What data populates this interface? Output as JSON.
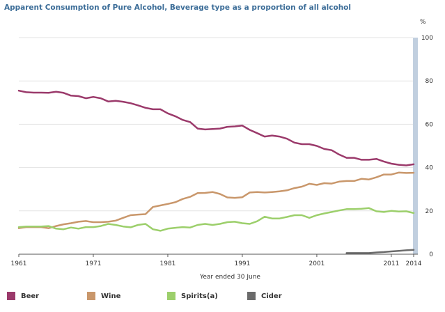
{
  "chart_data": {
    "type": "line",
    "title": "Apparent Consumption of Pure Alcohol, Beverage type as a proportion of all alcohol",
    "xlabel": "Year ended 30 June",
    "ylabel": "%",
    "xlim": [
      1961,
      2014
    ],
    "ylim": [
      0,
      100
    ],
    "x_ticks": [
      "1961",
      "1971",
      "1981",
      "1991",
      "2001",
      "2011",
      "2014"
    ],
    "y_ticks": [
      "0",
      "20",
      "40",
      "60",
      "80",
      "100"
    ],
    "legend_position": "bottom",
    "series": [
      {
        "name": "Beer",
        "color": "#9b3a6b",
        "x": [
          1961,
          1962,
          1963,
          1964,
          1965,
          1966,
          1967,
          1968,
          1969,
          1970,
          1971,
          1972,
          1973,
          1974,
          1975,
          1976,
          1977,
          1978,
          1979,
          1980,
          1981,
          1982,
          1983,
          1984,
          1985,
          1986,
          1987,
          1988,
          1989,
          1990,
          1991,
          1992,
          1993,
          1994,
          1995,
          1996,
          1997,
          1998,
          1999,
          2000,
          2001,
          2002,
          2003,
          2004,
          2005,
          2006,
          2007,
          2008,
          2009,
          2010,
          2011,
          2012,
          2013,
          2014
        ],
        "values": [
          75.5,
          74.8,
          74.6,
          74.6,
          74.5,
          75.0,
          74.5,
          73.2,
          73.0,
          72.0,
          72.6,
          72.0,
          70.5,
          70.8,
          70.4,
          69.7,
          68.7,
          67.6,
          66.9,
          66.9,
          65.0,
          63.7,
          62.0,
          61.0,
          58.0,
          57.6,
          57.8,
          58.0,
          58.8,
          59.0,
          59.4,
          57.4,
          55.9,
          54.3,
          54.8,
          54.3,
          53.3,
          51.5,
          50.8,
          50.8,
          50.0,
          48.6,
          48.0,
          46.0,
          44.5,
          44.5,
          43.6,
          43.6,
          44.0,
          42.8,
          41.8,
          41.3,
          41.0,
          41.5
        ]
      },
      {
        "name": "Wine",
        "color": "#c9976b",
        "x": [
          1961,
          1962,
          1963,
          1964,
          1965,
          1966,
          1967,
          1968,
          1969,
          1970,
          1971,
          1972,
          1973,
          1974,
          1975,
          1976,
          1977,
          1978,
          1979,
          1980,
          1981,
          1982,
          1983,
          1984,
          1985,
          1986,
          1987,
          1988,
          1989,
          1990,
          1991,
          1992,
          1993,
          1994,
          1995,
          1996,
          1997,
          1998,
          1999,
          2000,
          2001,
          2002,
          2003,
          2004,
          2005,
          2006,
          2007,
          2008,
          2009,
          2010,
          2011,
          2012,
          2013,
          2014
        ],
        "values": [
          12.0,
          12.5,
          12.5,
          12.5,
          12.0,
          13.0,
          13.8,
          14.3,
          15.0,
          15.3,
          14.8,
          14.8,
          15.0,
          15.5,
          16.8,
          18.0,
          18.3,
          18.5,
          21.8,
          22.5,
          23.2,
          24.0,
          25.5,
          26.5,
          28.2,
          28.3,
          28.7,
          27.8,
          26.2,
          26.0,
          26.3,
          28.5,
          28.7,
          28.5,
          28.7,
          29.0,
          29.5,
          30.5,
          31.2,
          32.5,
          32.0,
          32.8,
          32.6,
          33.5,
          33.8,
          33.8,
          34.8,
          34.5,
          35.5,
          36.8,
          36.8,
          37.7,
          37.5,
          37.6
        ]
      },
      {
        "name": "Spirits(a)",
        "color": "#9ccf6b",
        "x": [
          1961,
          1962,
          1963,
          1964,
          1965,
          1966,
          1967,
          1968,
          1969,
          1970,
          1971,
          1972,
          1973,
          1974,
          1975,
          1976,
          1977,
          1978,
          1979,
          1980,
          1981,
          1982,
          1983,
          1984,
          1985,
          1986,
          1987,
          1988,
          1989,
          1990,
          1991,
          1992,
          1993,
          1994,
          1995,
          1996,
          1997,
          1998,
          1999,
          2000,
          2001,
          2002,
          2003,
          2004,
          2005,
          2006,
          2007,
          2008,
          2009,
          2010,
          2011,
          2012,
          2013,
          2014
        ],
        "values": [
          12.5,
          12.8,
          12.8,
          12.8,
          13.0,
          11.8,
          11.5,
          12.3,
          11.8,
          12.5,
          12.5,
          13.0,
          14.0,
          13.5,
          12.8,
          12.4,
          13.5,
          14.0,
          11.5,
          10.8,
          11.8,
          12.2,
          12.5,
          12.3,
          13.5,
          14.0,
          13.5,
          14.0,
          14.8,
          15.0,
          14.3,
          14.0,
          15.2,
          17.3,
          16.5,
          16.5,
          17.2,
          18.0,
          18.0,
          16.8,
          18.0,
          18.8,
          19.5,
          20.2,
          20.8,
          20.8,
          21.0,
          21.3,
          19.8,
          19.5,
          20.0,
          19.7,
          19.8,
          19.0
        ]
      },
      {
        "name": "Cider",
        "color": "#6b6b6b",
        "x": [
          2005,
          2006,
          2007,
          2008,
          2009,
          2010,
          2011,
          2012,
          2013,
          2014
        ],
        "values": [
          0.5,
          0.5,
          0.5,
          0.5,
          0.8,
          1.0,
          1.3,
          1.5,
          1.8,
          2.0
        ]
      }
    ]
  }
}
